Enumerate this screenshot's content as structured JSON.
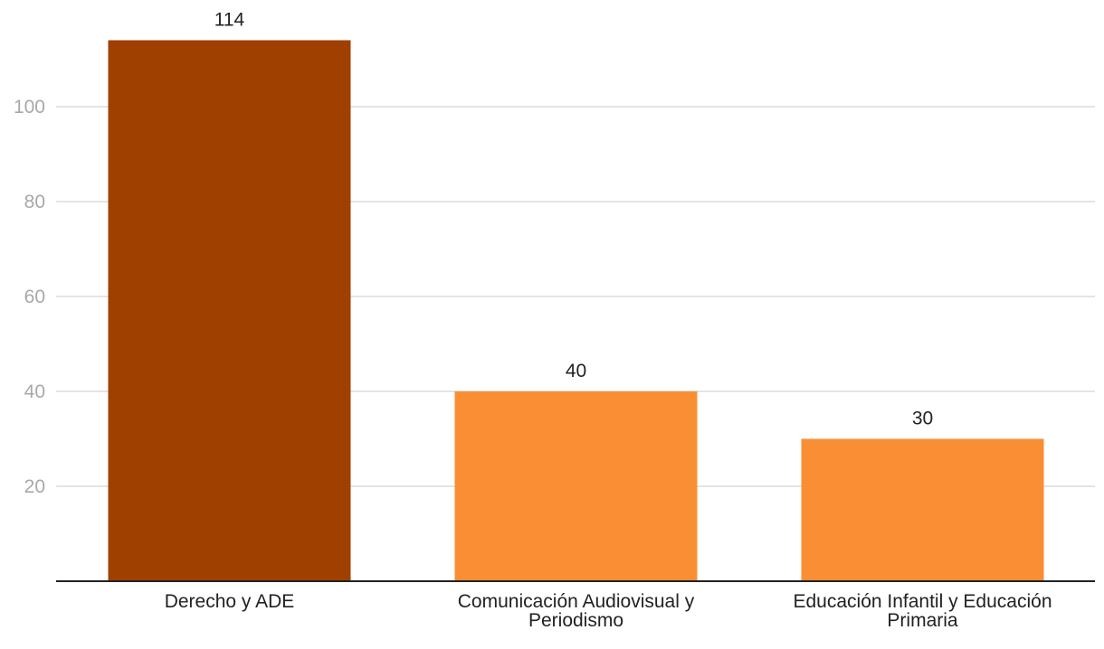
{
  "chart_data": {
    "type": "bar",
    "title": "",
    "xlabel": "",
    "ylabel": "",
    "categories": [
      [
        "Derecho y ADE"
      ],
      [
        "Comunicación Audiovisual y",
        "Periodismo"
      ],
      [
        "Educación Infantil y Educación",
        "Primaria"
      ]
    ],
    "values": [
      114,
      40,
      30
    ],
    "data_labels": [
      "114",
      "40",
      "30"
    ],
    "bar_colors": [
      "#a04000",
      "#fa8e34",
      "#fa8e34"
    ],
    "ylim": [
      0,
      120
    ],
    "yticks": [
      20,
      40,
      60,
      80,
      100
    ],
    "grid": true,
    "legend": "none"
  }
}
